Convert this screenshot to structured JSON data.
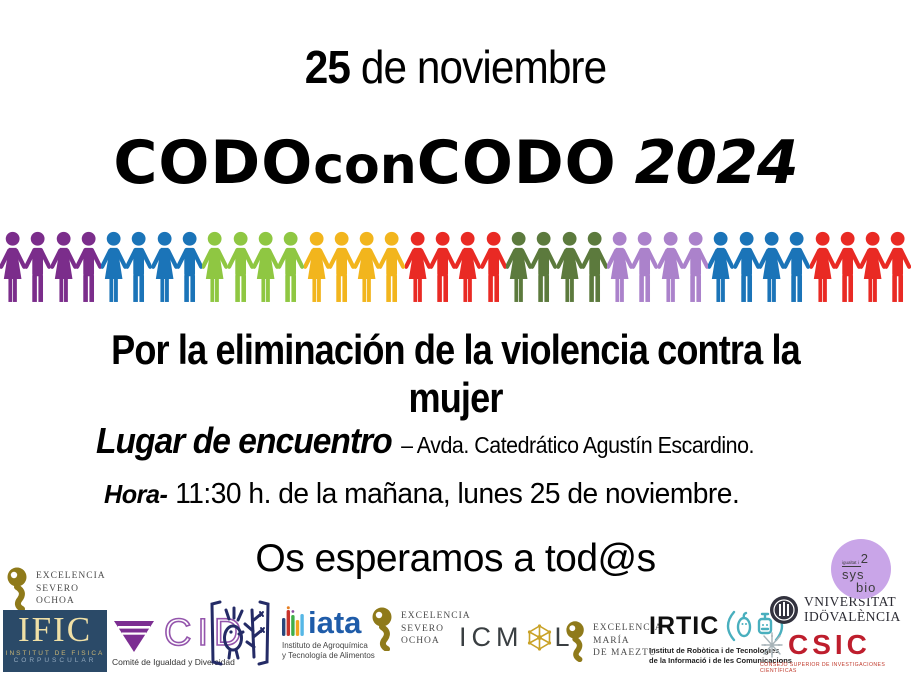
{
  "poster": {
    "date_bold": "25",
    "date_rest": " de noviembre",
    "title": {
      "codo1": "CODO",
      "con": "con",
      "codo2": "CODO",
      "year": "2024"
    },
    "slogan": "Por la eliminación de la violencia contra la mujer",
    "location": {
      "label": "Lugar de encuentro",
      "value": "– Avda. Catedrático Agustín Escardino."
    },
    "time": {
      "label": "Hora-",
      "value": "11:30 h. de la mañana, lunes 25 de noviembre."
    },
    "closing": "Os esperamos a tod@s"
  },
  "people_chain": {
    "pattern": [
      "woman",
      "man",
      "woman",
      "man"
    ],
    "group_colors": [
      "#7b2d8b",
      "#1b74b8",
      "#8fc742",
      "#f2b51d",
      "#e92a24",
      "#5c7a3d",
      "#ab82cb",
      "#1b74b8",
      "#e92a24"
    ]
  },
  "logos": {
    "severo_ochoa": {
      "lines": [
        "EXCELENCIA",
        "SEVERO",
        "OCHOA"
      ],
      "gold": "#8f7a1a"
    },
    "ific": {
      "name": "IFIC",
      "sub1": "INSTITUT DE FISICA",
      "sub2": "CORPUSCULAR",
      "bg": "#2b4a68"
    },
    "cid": {
      "name": "CID",
      "caption": "Comité de Igualdad y Diversidad",
      "purple": "#7c2e92"
    },
    "iata": {
      "name": "iata",
      "caption1": "Instituto de Agroquímica",
      "caption2": "y Tecnología de Alimentos",
      "blue": "#1f5ca9"
    },
    "icmol": {
      "part1": "ICM",
      "part2": "L",
      "gold": "#c9a227"
    },
    "maeztu": {
      "lines": [
        "EXCELENCIA",
        "MARÍA",
        "DE MAEZTU"
      ]
    },
    "irtic": {
      "name": "IRTIC",
      "caption1": "Institut de Robòtica i de Tecnologies",
      "caption2": "de la Informació i de les Comunicacions",
      "teal": "#49afbe"
    },
    "uv": {
      "line1": "VNIVERSITAT",
      "line2": "IDÖVALÈNCIA"
    },
    "csic": {
      "name": "CSIC",
      "caption": "CONSEJO SUPERIOR DE INVESTIGACIONES CIENTÍFICAS",
      "red": "#be1e2d"
    },
    "i2sysbio": {
      "top": "igualtat i",
      "sup": "2",
      "mid": "sys",
      "bottom": "bio",
      "bg": "#c9a5e8"
    }
  }
}
